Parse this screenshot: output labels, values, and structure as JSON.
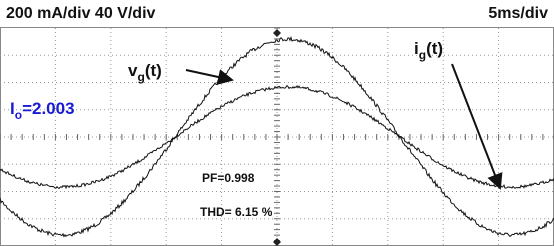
{
  "header": {
    "scale": "200 mA/div 40 V/div",
    "time": "5ms/div"
  },
  "labels": {
    "vg": {
      "main": "v",
      "sub": "g",
      "tail": "(t)"
    },
    "ig": {
      "main": "i",
      "sub": "g",
      "tail": "(t)"
    },
    "io": {
      "main": "I",
      "sub": "o",
      "tail": "=2.003"
    },
    "pf": "PF=0.998",
    "thd": "THD= 6.15 %"
  }
}
